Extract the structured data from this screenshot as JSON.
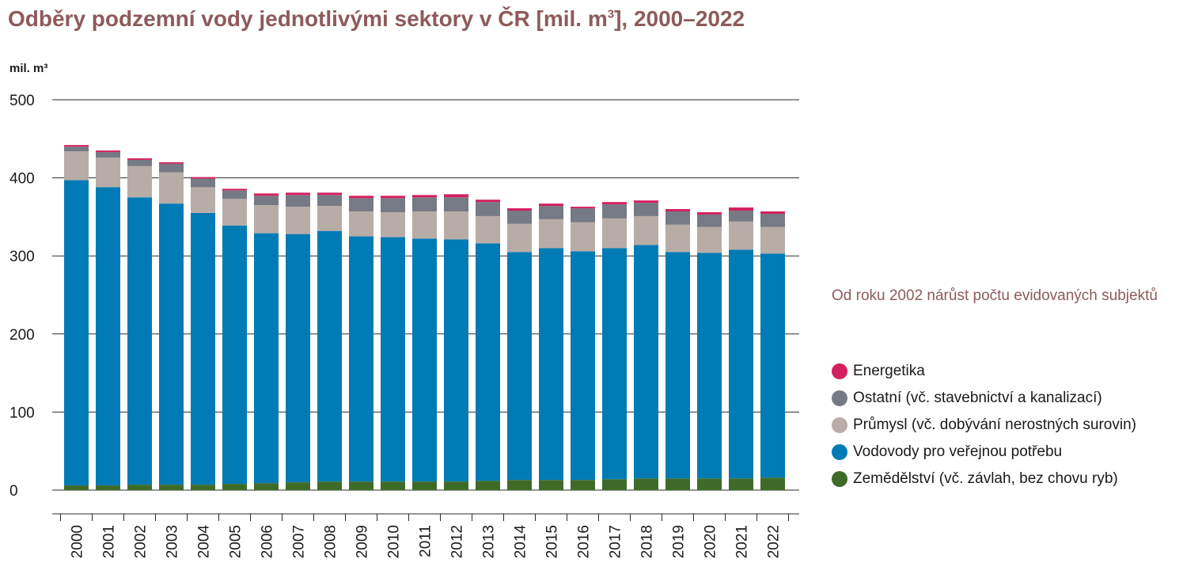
{
  "title_main": "Odběry podzemní vody jednotlivými sektory v ČR [mil. m",
  "title_sup": "3",
  "title_end": "], 2000–2022",
  "note": "Od roku 2002 nárůst počtu evidovaných subjektů",
  "chart_data": {
    "type": "bar",
    "stacked": true,
    "ylabel": "mil. m³",
    "ylim": [
      0,
      500
    ],
    "yticks": [
      0,
      100,
      200,
      300,
      400,
      500
    ],
    "grid": true,
    "legend_position": "right",
    "categories": [
      "2000",
      "2001",
      "2002",
      "2003",
      "2004",
      "2005",
      "2006",
      "2007",
      "2008",
      "2009",
      "2010",
      "2011",
      "2012",
      "2013",
      "2014",
      "2015",
      "2016",
      "2017",
      "2018",
      "2019",
      "2020",
      "2021",
      "2022"
    ],
    "series": [
      {
        "name": "Zemědělství (vč. závlah, bez chovu ryb)",
        "color": "#3f6b29",
        "values": [
          6,
          6,
          7,
          7,
          7,
          8,
          9,
          10,
          11,
          11,
          11,
          11,
          11,
          12,
          13,
          13,
          13,
          14,
          15,
          15,
          15,
          15,
          16
        ]
      },
      {
        "name": "Vodovody pro veřejnou potřebu",
        "color": "#007bb5",
        "values": [
          391,
          382,
          368,
          360,
          348,
          331,
          320,
          318,
          321,
          314,
          313,
          311,
          310,
          304,
          292,
          297,
          293,
          296,
          299,
          290,
          289,
          293,
          287
        ]
      },
      {
        "name": "Průmysl (vč. dobývání nerostných surovin)",
        "color": "#b8aca7",
        "values": [
          37,
          38,
          40,
          40,
          33,
          34,
          36,
          35,
          32,
          32,
          32,
          35,
          36,
          35,
          36,
          37,
          37,
          38,
          37,
          35,
          33,
          36,
          34
        ]
      },
      {
        "name": "Ostatní (vč. stavebnictví a kanalizací)",
        "color": "#767a84",
        "values": [
          6,
          7,
          8,
          11,
          11,
          11,
          12,
          15,
          14,
          17,
          18,
          18,
          18,
          18,
          17,
          17,
          18,
          18,
          17,
          17,
          16,
          14,
          17
        ]
      },
      {
        "name": "Energetika",
        "color": "#d4205e",
        "values": [
          2,
          2,
          2,
          2,
          2,
          2,
          3,
          3,
          3,
          3,
          3,
          3,
          4,
          3,
          3,
          3,
          2,
          3,
          3,
          3,
          3,
          4,
          3
        ]
      }
    ]
  }
}
